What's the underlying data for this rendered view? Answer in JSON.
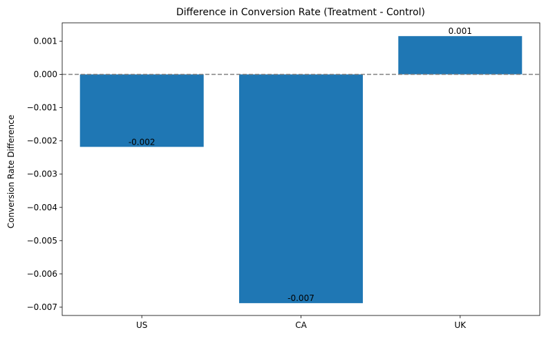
{
  "chart_data": {
    "type": "bar",
    "title": "Difference in Conversion Rate (Treatment - Control)",
    "xlabel": "",
    "ylabel": "Conversion Rate Difference",
    "categories": [
      "US",
      "CA",
      "UK"
    ],
    "values": [
      -0.00218,
      -0.00688,
      0.00115
    ],
    "data_labels": [
      "-0.002",
      "-0.007",
      "0.001"
    ],
    "ylim": [
      -0.00725,
      0.00155
    ],
    "yticks": [
      0.001,
      0.0,
      -0.001,
      -0.002,
      -0.003,
      -0.004,
      -0.005,
      -0.006,
      -0.007
    ],
    "ytick_labels": [
      "0.001",
      "0.000",
      "−0.001",
      "−0.002",
      "−0.003",
      "−0.004",
      "−0.005",
      "−0.006",
      "−0.007"
    ],
    "reference_line": {
      "y": 0,
      "style": "dashed",
      "color": "#808080"
    },
    "bar_color": "#1f77b4",
    "grid": false,
    "legend": "none"
  }
}
